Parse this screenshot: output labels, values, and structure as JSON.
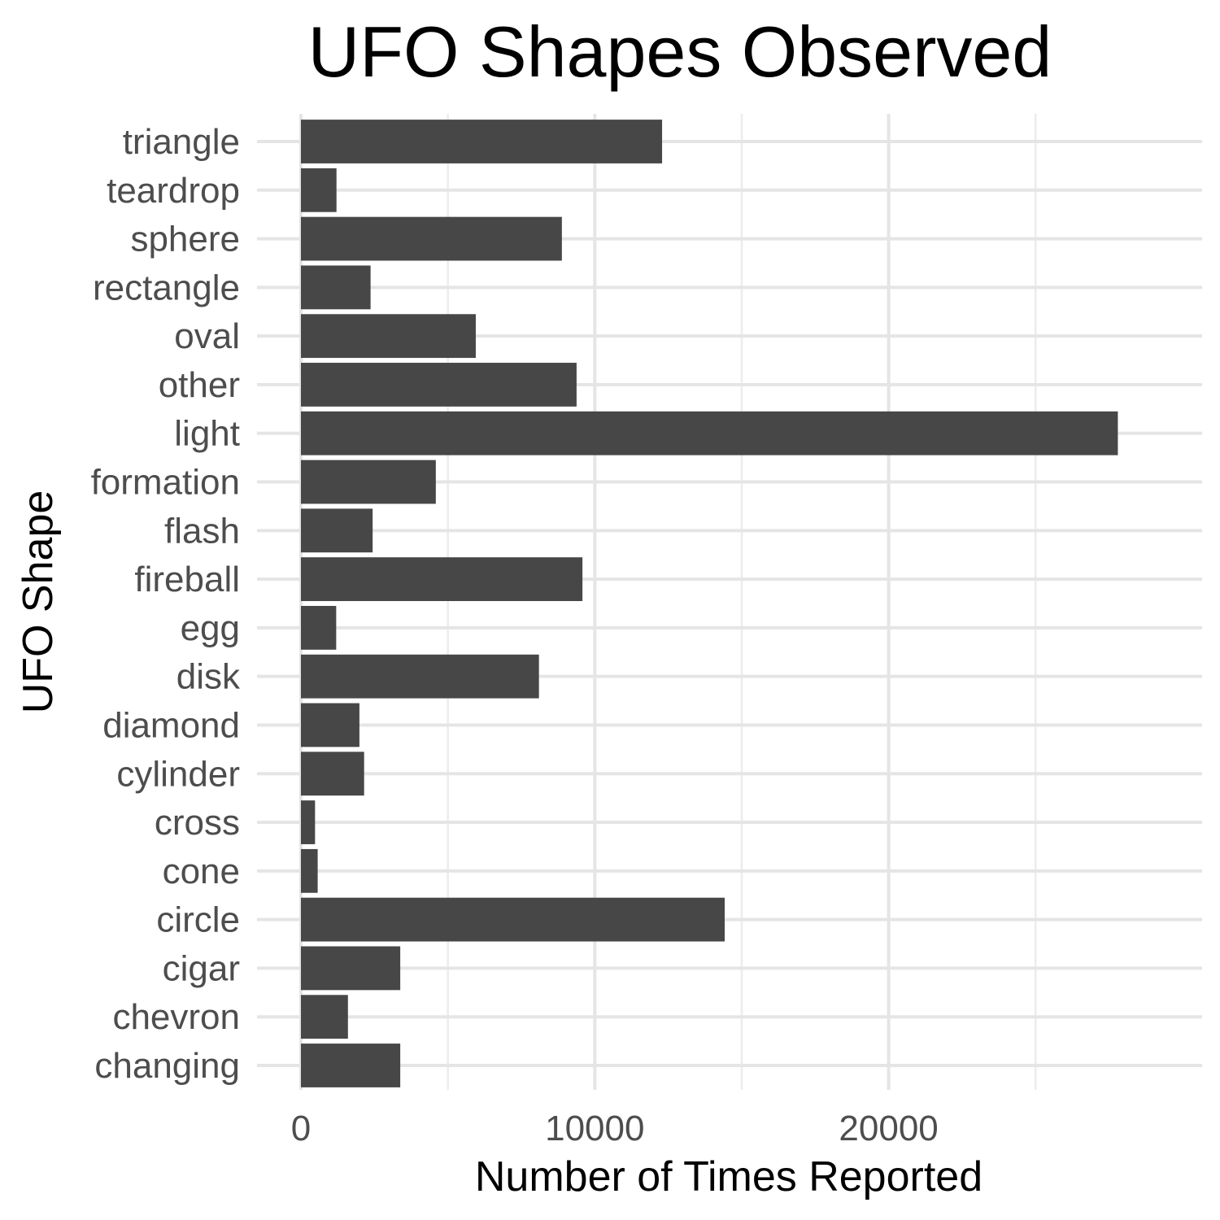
{
  "chart_data": {
    "type": "bar",
    "orientation": "horizontal",
    "title": "UFO Shapes Observed",
    "xlabel": "Number of Times Reported",
    "ylabel": "UFO Shape",
    "categories": [
      "changing",
      "chevron",
      "cigar",
      "circle",
      "cone",
      "cross",
      "cylinder",
      "diamond",
      "disk",
      "egg",
      "fireball",
      "flash",
      "formation",
      "light",
      "other",
      "oval",
      "rectangle",
      "sphere",
      "teardrop",
      "triangle"
    ],
    "values": [
      3380,
      1600,
      3380,
      14420,
      570,
      480,
      2150,
      1990,
      8100,
      1200,
      9580,
      2440,
      4590,
      27800,
      9380,
      5950,
      2370,
      8880,
      1210,
      12290
    ],
    "xlim": [
      0,
      29200
    ],
    "xticks": [
      0,
      10000,
      20000
    ],
    "xtick_labels": [
      "0",
      "10000",
      "20000"
    ],
    "grid": true,
    "legend": "none",
    "bar_color": "#474747"
  }
}
